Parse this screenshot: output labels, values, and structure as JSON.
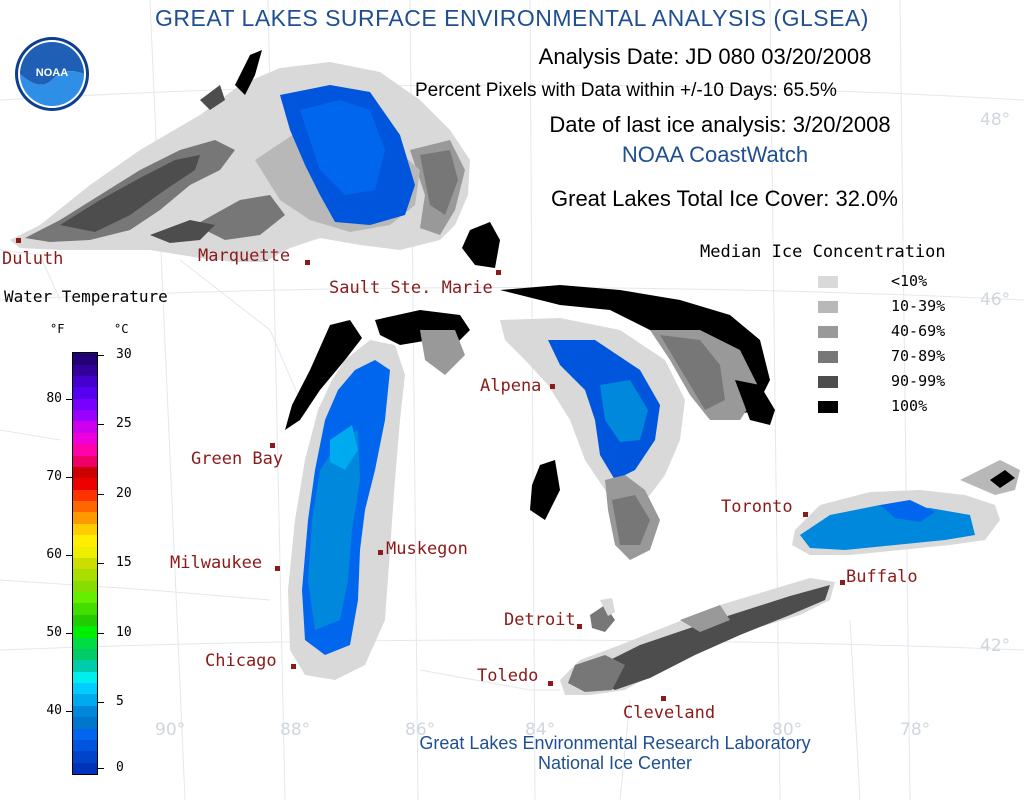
{
  "header": {
    "title": "GREAT LAKES SURFACE ENVIRONMENTAL ANALYSIS (GLSEA)",
    "analysis_date": "Analysis Date:  JD 080 03/20/2008",
    "percent_pixels": "Percent Pixels with Data within +/-10 Days:  65.5%",
    "last_ice": "Date of last ice analysis: 3/20/2008",
    "source": "NOAA CoastWatch",
    "total_ice": "Great Lakes Total Ice Cover:  32.0%"
  },
  "logo": {
    "text": "NOAA",
    "icon": "noaa-logo"
  },
  "cities": [
    {
      "name": "Duluth"
    },
    {
      "name": "Marquette"
    },
    {
      "name": "Sault Ste. Marie"
    },
    {
      "name": "Alpena"
    },
    {
      "name": "Green Bay"
    },
    {
      "name": "Milwaukee"
    },
    {
      "name": "Muskegon"
    },
    {
      "name": "Chicago"
    },
    {
      "name": "Detroit"
    },
    {
      "name": "Toledo"
    },
    {
      "name": "Cleveland"
    },
    {
      "name": "Toronto"
    },
    {
      "name": "Buffalo"
    }
  ],
  "grid_labels": {
    "lat_48": "48°",
    "lat_46": "46°",
    "lat_42": "42°",
    "lon_90": "90°",
    "lon_88": "88°",
    "lon_86": "86°",
    "lon_84": "84°",
    "lon_80": "80°",
    "lon_78": "78°"
  },
  "water_temp": {
    "title": "Water Temperature",
    "unit_f": "°F",
    "unit_c": "°C",
    "f_ticks": [
      "40",
      "50",
      "60",
      "70",
      "80"
    ],
    "c_ticks": [
      "0",
      "5",
      "10",
      "15",
      "20",
      "25",
      "30"
    ],
    "colors": [
      "#0033bb",
      "#0044cc",
      "#0055dd",
      "#0066ee",
      "#0077cc",
      "#0088dd",
      "#00aaee",
      "#00ccff",
      "#00eeee",
      "#00ccaa",
      "#00cc66",
      "#00dd44",
      "#00ee00",
      "#22cc00",
      "#44dd00",
      "#66ee00",
      "#88dd00",
      "#aadd00",
      "#ccdd00",
      "#eeee00",
      "#ffee00",
      "#ffcc00",
      "#ff9900",
      "#ff6600",
      "#ff3300",
      "#ee0000",
      "#cc0000",
      "#ee0066",
      "#ff00aa",
      "#ee00dd",
      "#cc00ee",
      "#9900ff",
      "#7700ff",
      "#5500ee",
      "#4400cc",
      "#330099",
      "#220077"
    ]
  },
  "ice_legend": {
    "title": "Median Ice Concentration",
    "items": [
      {
        "label": "<10%",
        "color": "#d9d9d9"
      },
      {
        "label": "10-39%",
        "color": "#b8b8b8"
      },
      {
        "label": "40-69%",
        "color": "#999999"
      },
      {
        "label": "70-89%",
        "color": "#777777"
      },
      {
        "label": "90-99%",
        "color": "#4d4d4d"
      },
      {
        "label": "100%",
        "color": "#000000"
      }
    ]
  },
  "footer": {
    "line1": "Great Lakes Environmental Research Laboratory",
    "line2": "National Ice Center"
  }
}
